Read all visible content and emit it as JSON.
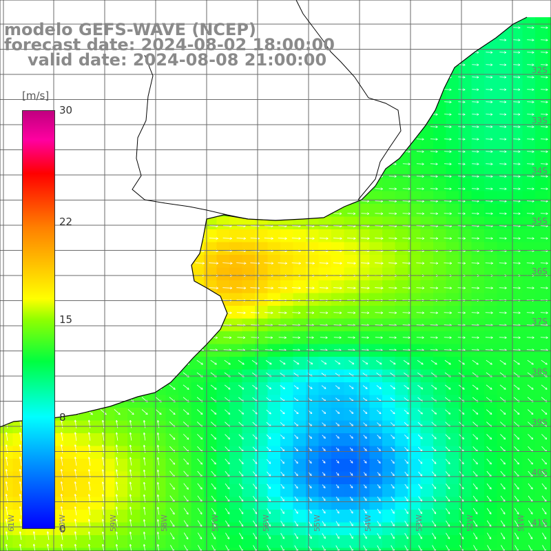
{
  "title": {
    "model": "modelo GEFS-WAVE (NCEP)",
    "forecast": "forecast date: 2024-08-02 18:00:00",
    "valid": "valid date: 2024-08-08 21:00:00"
  },
  "colorbar": {
    "units": "[m/s]",
    "ticks": [
      "30",
      "22",
      "15",
      "8",
      "0"
    ],
    "tick_values": [
      30,
      22,
      15,
      8,
      0
    ],
    "min": 0,
    "max": 30,
    "colors": [
      "#0000ff",
      "#00a0ff",
      "#00ffff",
      "#00ff40",
      "#90ff00",
      "#ffff00",
      "#ff8000",
      "#ff0000",
      "#ff00a0",
      "#c00080"
    ]
  },
  "map": {
    "variable": "wind speed",
    "lat_labels": [
      "32S",
      "33S",
      "34S",
      "35S",
      "36S",
      "37S",
      "38S",
      "39S",
      "40S",
      "41S"
    ],
    "lon_labels": [
      "61W",
      "60W",
      "59W",
      "58W",
      "57W",
      "56W",
      "55W",
      "54W",
      "53W",
      "52W",
      "51W"
    ],
    "grid": true,
    "arrows": "white wind vectors"
  }
}
